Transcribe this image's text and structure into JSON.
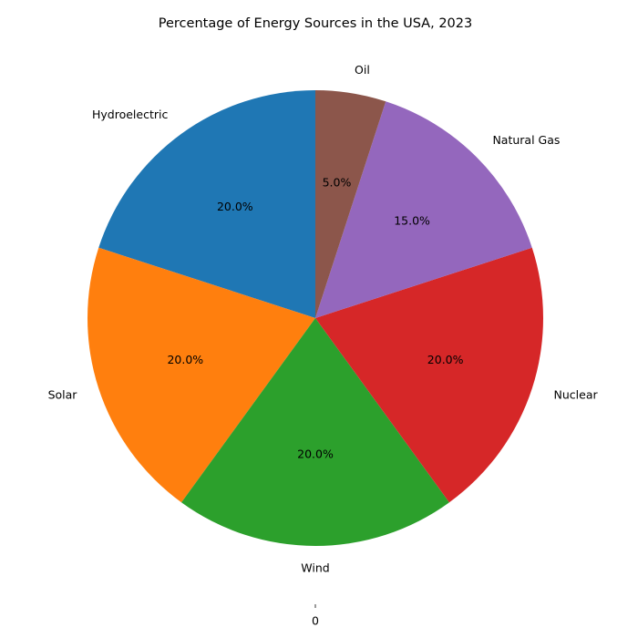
{
  "chart_data": {
    "type": "pie",
    "title": "Percentage of Energy Sources in the USA, 2023",
    "slices": [
      {
        "label": "Hydroelectric",
        "value": 20.0,
        "pct_label": "20.0%",
        "color": "#1f77b4"
      },
      {
        "label": "Solar",
        "value": 20.0,
        "pct_label": "20.0%",
        "color": "#ff7f0e"
      },
      {
        "label": "Wind",
        "value": 20.0,
        "pct_label": "20.0%",
        "color": "#2ca02c"
      },
      {
        "label": "Nuclear",
        "value": 20.0,
        "pct_label": "20.0%",
        "color": "#d62728"
      },
      {
        "label": "Natural Gas",
        "value": 15.0,
        "pct_label": "15.0%",
        "color": "#9467bd"
      },
      {
        "label": "Oil",
        "value": 5.0,
        "pct_label": "5.0%",
        "color": "#8c564b"
      }
    ],
    "start_angle_deg": 90,
    "direction": "counterclockwise",
    "x_tick_labels": [
      "0"
    ]
  }
}
